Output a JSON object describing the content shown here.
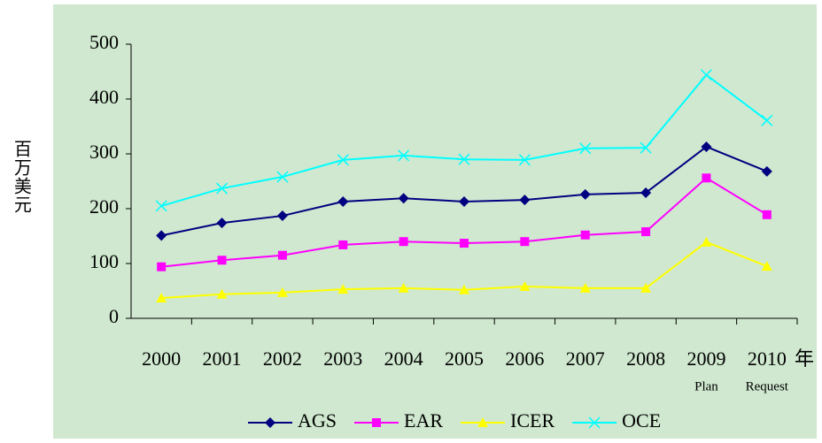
{
  "chart_data": {
    "type": "line",
    "y_label": "百万美元",
    "x_label": "年",
    "categories": [
      "2000",
      "2001",
      "2002",
      "2003",
      "2004",
      "2005",
      "2006",
      "2007",
      "2008",
      "2009",
      "2010"
    ],
    "category_notes": [
      null,
      null,
      null,
      null,
      null,
      null,
      null,
      null,
      null,
      "Plan",
      "Request"
    ],
    "series": [
      {
        "name": "AGS",
        "color": "#000080",
        "marker": "diamond",
        "values": [
          151,
          174,
          187,
          213,
          219,
          213,
          216,
          226,
          229,
          313,
          268
        ]
      },
      {
        "name": "EAR",
        "color": "#ff00ff",
        "marker": "square",
        "values": [
          94,
          106,
          115,
          134,
          140,
          137,
          140,
          152,
          158,
          256,
          189
        ]
      },
      {
        "name": "ICER",
        "color": "#ffff00",
        "marker": "triangle",
        "values": [
          37,
          44,
          47,
          53,
          55,
          52,
          58,
          55,
          55,
          139,
          95
        ]
      },
      {
        "name": "OCE",
        "color": "#00ffff",
        "marker": "x",
        "values": [
          205,
          237,
          258,
          289,
          297,
          290,
          289,
          310,
          311,
          444,
          361
        ]
      }
    ],
    "ylim": [
      0,
      500
    ],
    "yticks": [
      0,
      100,
      200,
      300,
      400,
      500
    ],
    "legend": "bottom"
  }
}
